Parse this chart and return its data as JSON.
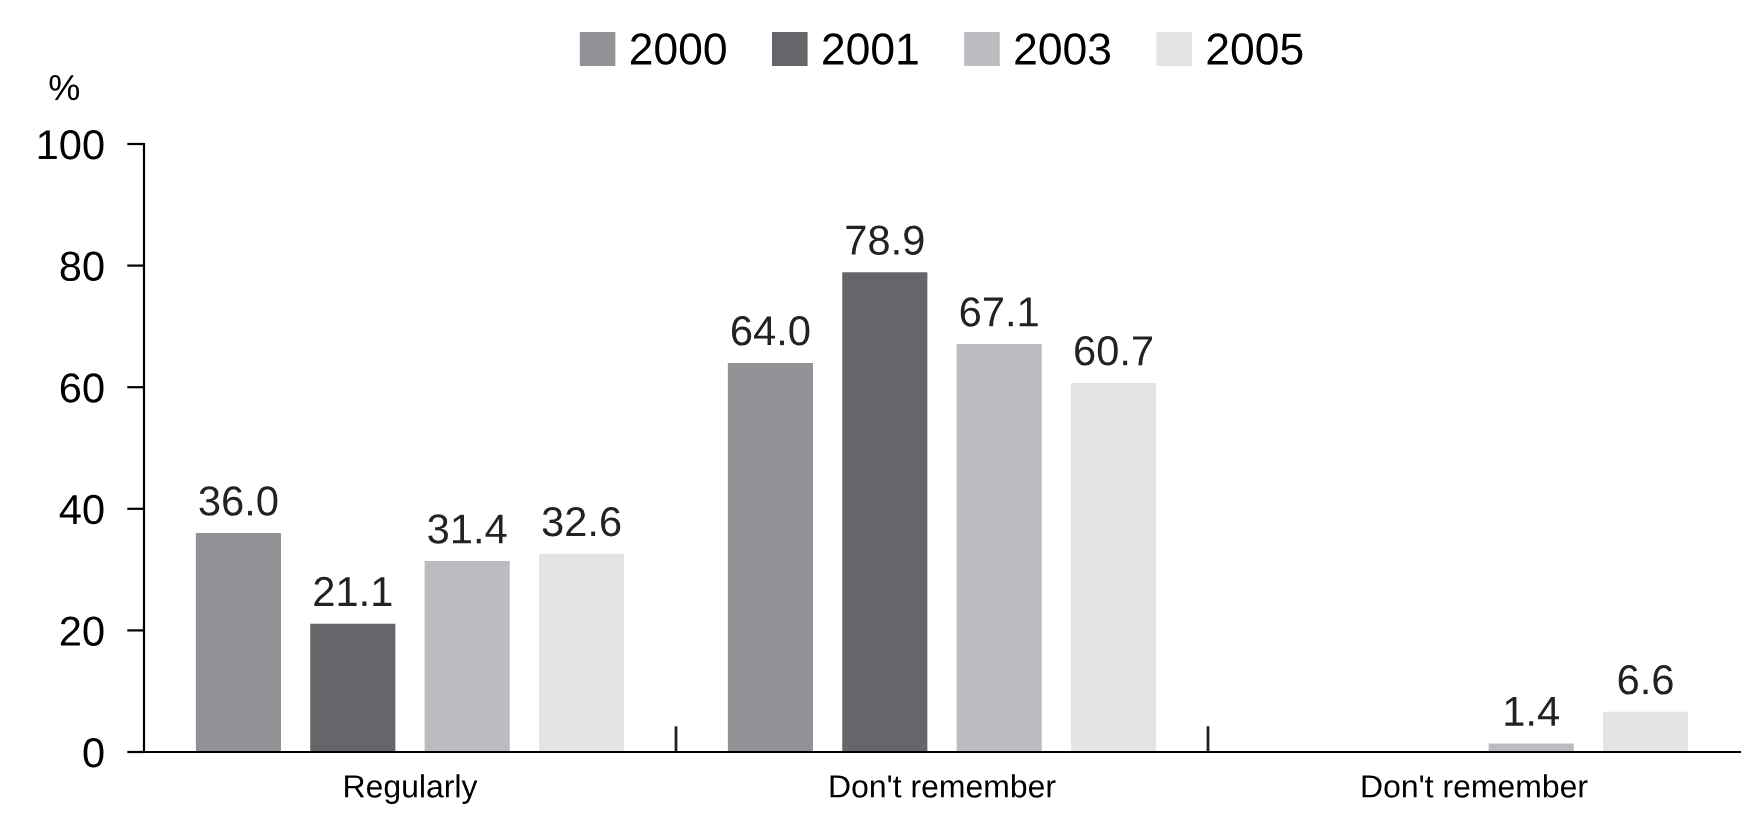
{
  "chart_data": {
    "type": "bar",
    "ylabel": "%",
    "categories": [
      "Regularly",
      "Don't remember",
      "Don't remember"
    ],
    "series": [
      {
        "name": "2000",
        "color": "#929296",
        "values": [
          36.0,
          64.0,
          null
        ],
        "value_labels": [
          "36.0",
          "64.0",
          null
        ]
      },
      {
        "name": "2001",
        "color": "#66666a",
        "values": [
          21.1,
          78.9,
          null
        ],
        "value_labels": [
          "21.1",
          "78.9",
          null
        ]
      },
      {
        "name": "2003",
        "color": "#bcbcc0",
        "values": [
          31.4,
          67.1,
          1.4
        ],
        "value_labels": [
          "31.4",
          "67.1",
          "1.4"
        ]
      },
      {
        "name": "2005",
        "color": "#e4e4e6",
        "values": [
          32.6,
          60.7,
          6.6
        ],
        "value_labels": [
          "32.6",
          "60.7",
          "6.6"
        ]
      }
    ],
    "ylim": [
      0,
      100
    ],
    "yticks": [
      0,
      20,
      40,
      60,
      80,
      100
    ],
    "grid": false,
    "legend": "top"
  }
}
